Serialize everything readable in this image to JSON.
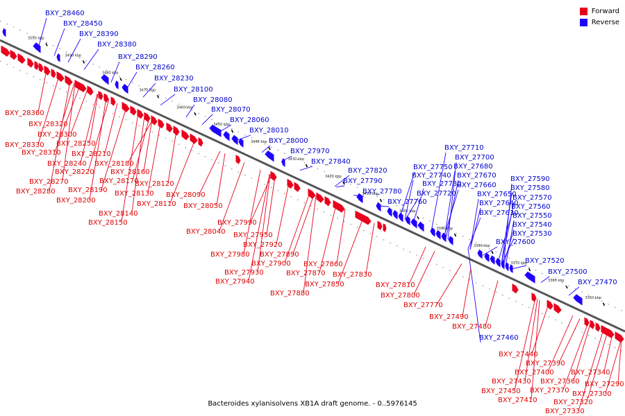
{
  "colors": {
    "forward": "#e8001c",
    "reverse": "#1e00ff",
    "axis": "#666666",
    "label_forward": "#dd0000",
    "label_reverse": "#0000cc"
  },
  "legend": {
    "forward": "Forward",
    "reverse": "Reverse"
  },
  "caption": "Bacteroides xylanisolvens XB1A draft genome. - 0..5976145",
  "ticks": [
    "3500 kbp",
    "3490 kbp",
    "3480 kbp",
    "3470 kbp",
    "3460 kbp",
    "3450 kbp",
    "3440 kbp",
    "3430 kbp",
    "3420 kbp",
    "3410 kbp",
    "3400 kbp",
    "3390 kbp",
    "3380 kbp",
    "3370 kbp",
    "3360 kbp",
    "3350 kbp"
  ],
  "reverse_genes": [
    "BXY_28460",
    "BXY_28450",
    "BXY_28390",
    "BXY_28380",
    "BXY_28290",
    "BXY_28260",
    "BXY_28230",
    "BXY_28100",
    "BXY_28080",
    "BXY_28070",
    "BXY_28060",
    "BXY_28010",
    "BXY_28000",
    "BXY_27970",
    "BXY_27840",
    "BXY_27820",
    "BXY_27790",
    "BXY_27780",
    "BXY_27760",
    "BXY_27750",
    "BXY_27740",
    "BXY_27730",
    "BXY_27720",
    "BXY_27710",
    "BXY_27700",
    "BXY_27680",
    "BXY_27670",
    "BXY_27660",
    "BXY_27650",
    "BXY_27640",
    "BXY_27630",
    "BXY_27600",
    "BXY_27590",
    "BXY_27580",
    "BXY_27570",
    "BXY_27560",
    "BXY_27550",
    "BXY_27540",
    "BXY_27530",
    "BXY_27520",
    "BXY_27500",
    "BXY_27470",
    "BXY_27460"
  ],
  "forward_genes": [
    "BXY_28360",
    "BXY_28320",
    "BXY_28300",
    "BXY_28330",
    "BXY_28310",
    "BXY_28250",
    "BXY_28210",
    "BXY_28240",
    "BXY_28220",
    "BXY_28180",
    "BXY_28160",
    "BXY_28270",
    "BXY_28170",
    "BXY_28280",
    "BXY_28190",
    "BXY_28120",
    "BXY_28130",
    "BXY_28200",
    "BXY_28090",
    "BXY_28110",
    "BXY_28050",
    "BXY_28140",
    "BXY_28150",
    "BXY_27990",
    "BXY_28040",
    "BXY_27950",
    "BXY_27920",
    "BXY_27980",
    "BXY_27890",
    "BXY_27900",
    "BXY_27860",
    "BXY_27930",
    "BXY_27870",
    "BXY_27940",
    "BXY_27850",
    "BXY_27830",
    "BXY_27880",
    "BXY_27810",
    "BXY_27800",
    "BXY_27770",
    "BXY_27490",
    "BXY_27480",
    "BXY_27440",
    "BXY_27390",
    "BXY_27400",
    "BXY_27340",
    "BXY_27430",
    "BXY_27360",
    "BXY_27450",
    "BXY_27370",
    "BXY_27410",
    "BXY_27290",
    "BXY_27300",
    "BXY_27320",
    "BXY_27330"
  ]
}
